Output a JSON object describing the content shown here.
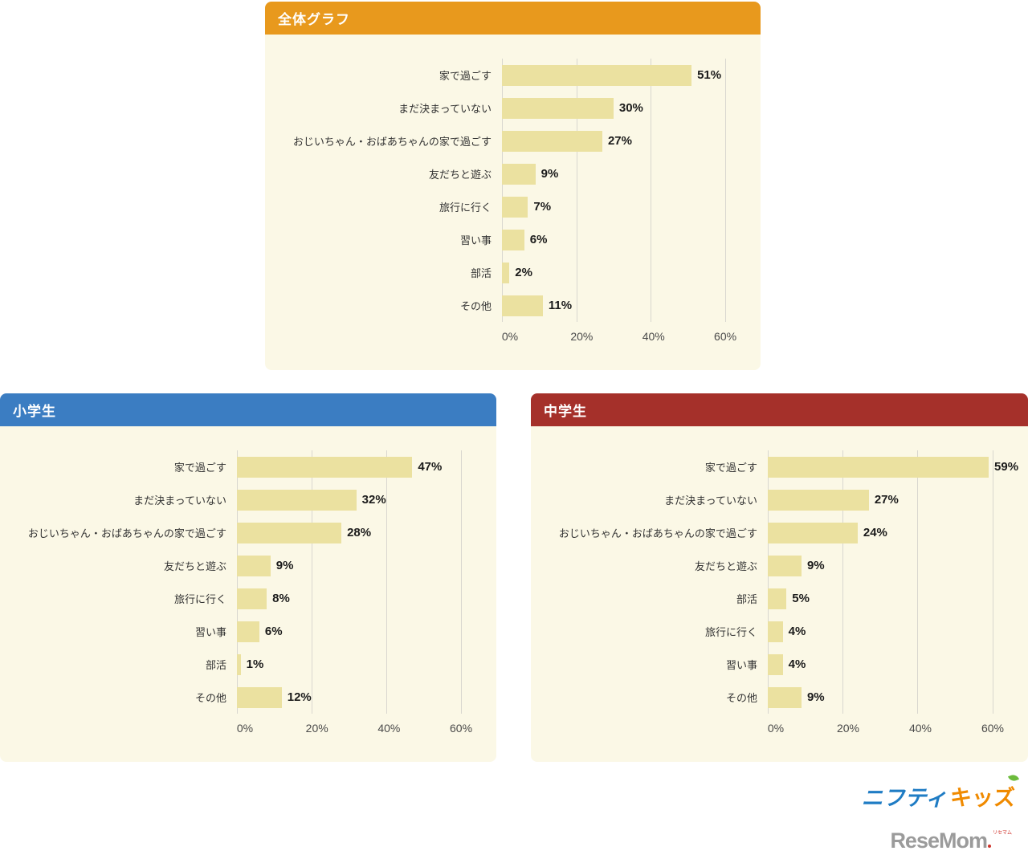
{
  "page": {
    "background": "#ffffff"
  },
  "colors": {
    "overall_header": "#E8991D",
    "elementary_header": "#3B7DC2",
    "middle_header": "#A5302A",
    "panel_background": "#FBF8E6",
    "bar_fill": "#EBE1A0",
    "gridline": "#d9d7cf"
  },
  "chart_data": [
    {
      "type": "bar",
      "title": "全体グラフ",
      "header_color": "#E8991D",
      "orientation": "horizontal",
      "categories": [
        "家で過ごす",
        "まだ決まっていない",
        "おじいちゃん・おばあちゃんの家で過ごす",
        "友だちと遊ぶ",
        "旅行に行く",
        "習い事",
        "部活",
        "その他"
      ],
      "values": [
        51,
        30,
        27,
        9,
        7,
        6,
        2,
        11
      ],
      "value_labels": [
        "51%",
        "30%",
        "27%",
        "9%",
        "7%",
        "6%",
        "2%",
        "11%"
      ],
      "x_ticks": [
        "0%",
        "20%",
        "40%",
        "60%"
      ],
      "x_tick_values": [
        0,
        20,
        40,
        60
      ],
      "x_max": 62,
      "grid": true,
      "legend": "none"
    },
    {
      "type": "bar",
      "title": "小学生",
      "header_color": "#3B7DC2",
      "orientation": "horizontal",
      "categories": [
        "家で過ごす",
        "まだ決まっていない",
        "おじいちゃん・おばあちゃんの家で過ごす",
        "友だちと遊ぶ",
        "旅行に行く",
        "習い事",
        "部活",
        "その他"
      ],
      "values": [
        47,
        32,
        28,
        9,
        8,
        6,
        1,
        12
      ],
      "value_labels": [
        "47%",
        "32%",
        "28%",
        "9%",
        "8%",
        "6%",
        "1%",
        "12%"
      ],
      "x_ticks": [
        "0%",
        "20%",
        "40%",
        "60%"
      ],
      "x_tick_values": [
        0,
        20,
        40,
        60
      ],
      "x_max": 62,
      "grid": true,
      "legend": "none"
    },
    {
      "type": "bar",
      "title": "中学生",
      "header_color": "#A5302A",
      "orientation": "horizontal",
      "categories": [
        "家で過ごす",
        "まだ決まっていない",
        "おじいちゃん・おばあちゃんの家で過ごす",
        "友だちと遊ぶ",
        "部活",
        "旅行に行く",
        "習い事",
        "その他"
      ],
      "values": [
        59,
        27,
        24,
        9,
        5,
        4,
        4,
        9
      ],
      "value_labels": [
        "59%",
        "27%",
        "24%",
        "9%",
        "5%",
        "4%",
        "4%",
        "9%"
      ],
      "x_ticks": [
        "0%",
        "20%",
        "40%",
        "60%"
      ],
      "x_tick_values": [
        0,
        20,
        40,
        60
      ],
      "x_max": 62,
      "grid": true,
      "legend": "none"
    }
  ],
  "footer": {
    "nifty_logo_main": "ニフティ",
    "nifty_logo_kids": "キッズ",
    "resemom_logo": "ReseMom",
    "resemom_sub": "リセマム"
  }
}
